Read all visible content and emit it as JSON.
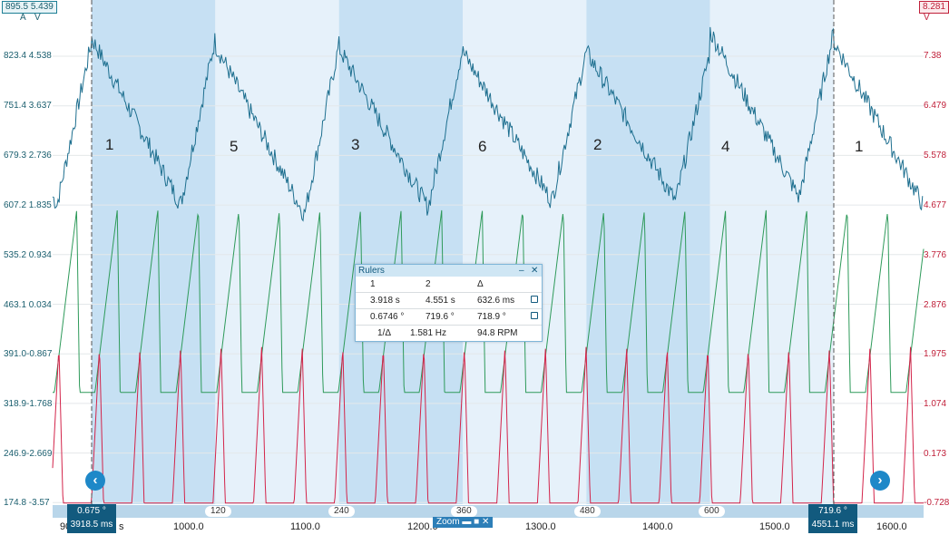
{
  "header": {
    "left_badge": "895.5",
    "left_badge2": "5.439",
    "left_unit_a": "A",
    "left_unit_v": "V",
    "right_badge": "8.281",
    "right_unit": "V"
  },
  "axes": {
    "left": [
      "823.4 4.538",
      "751.4 3.637",
      "679.3 2.736",
      "607.2 1.835",
      "535.2 0.934",
      "463.1 0.034",
      "391.0-0.867",
      "318.9-1.768",
      "246.9-2.669",
      "174.8 -3.57"
    ],
    "right": [
      "7.38",
      "6.479",
      "5.578",
      "4.677",
      "3.776",
      "2.876",
      "1.975",
      "1.074",
      "0.173",
      "-0.728"
    ],
    "x_ticks": [
      "1000.0",
      "1100.0",
      "1200.0",
      "1300.0",
      "1400.0",
      "1500.0",
      "1600.0"
    ],
    "x_partial": [
      "90",
      "s"
    ],
    "deg_ticks": [
      "120",
      "240",
      "360",
      "480",
      "600"
    ]
  },
  "segments": [
    "1",
    "5",
    "3",
    "6",
    "2",
    "4",
    "1"
  ],
  "cursors": {
    "left_deg": "0.675 °",
    "left_ms": "3918.5 ms",
    "right_deg": "719.6 °",
    "right_ms": "4551.1 ms"
  },
  "rulers": {
    "title": "Rulers",
    "head": [
      "1",
      "2",
      "Δ"
    ],
    "time_row": [
      "3.918 s",
      "4.551 s",
      "632.6 ms"
    ],
    "angle_row": [
      "0.6746 °",
      "719.6 °",
      "718.9 °"
    ],
    "freq_row": [
      "1/Δ",
      "1.581 Hz",
      "94.8 RPM"
    ]
  },
  "zoom_label": "Zoom",
  "nav": {
    "left": "‹",
    "right": "›"
  },
  "colors": {
    "current": "#1e6f8f",
    "green": "#2e9a5a",
    "red": "#d3244a",
    "band": "#c6e0f3"
  },
  "chart_data": {
    "type": "line",
    "x_unit": "ms",
    "x_ticks": [
      1000,
      1100,
      1200,
      1300,
      1400,
      1500,
      1600
    ],
    "xlim": [
      900,
      1630
    ],
    "series": [
      {
        "axis": "left (A)",
        "ylim": [
          174.8,
          895.5
        ],
        "values_desc": "triangular current waveform",
        "peaks": [
          850,
          840,
          835,
          830,
          830,
          860,
          845
        ],
        "troughs": [
          605,
          590,
          600,
          610,
          610,
          615,
          605
        ]
      },
      {
        "axis": "left (V)",
        "ylim": [
          -3.57,
          5.439
        ],
        "oscillation_center": 0.034,
        "amplitude": 1.2
      },
      {
        "axis": "right (V)",
        "ylim": [
          -0.728,
          8.281
        ],
        "oscillation_center": 0.6,
        "amplitude": 0.9
      }
    ]
  }
}
